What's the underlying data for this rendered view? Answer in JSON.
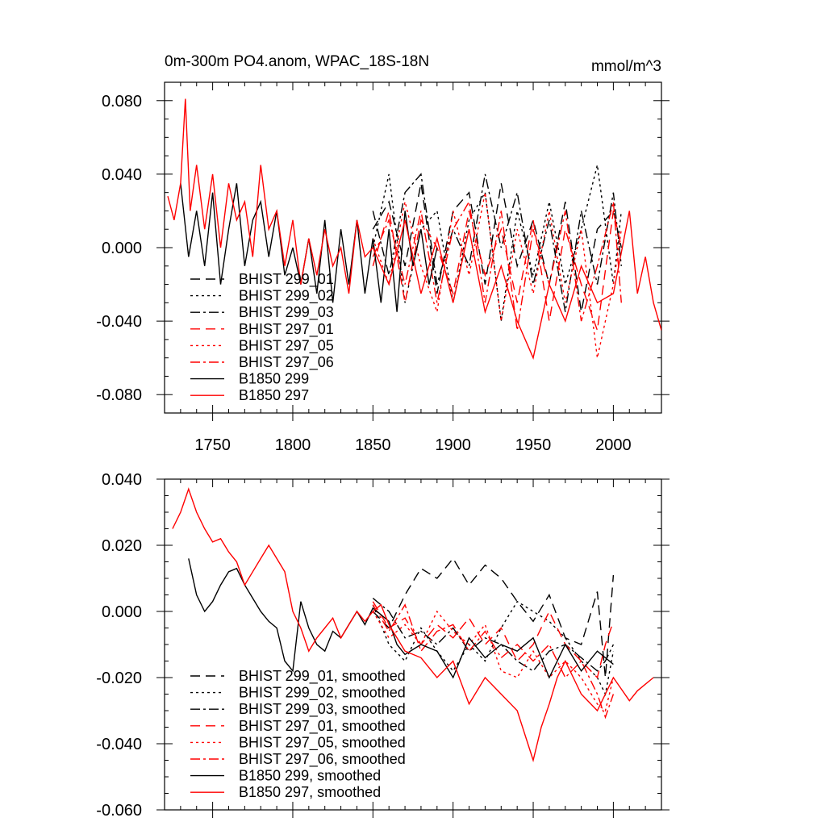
{
  "page": {
    "title_left": "0m-300m PO4.anom, WPAC_18S-18N",
    "title_right": "mmol/m^3"
  },
  "chart_data": [
    {
      "type": "line",
      "title": "0m-300m PO4.anom, WPAC_18S-18N",
      "units": "mmol/m^3",
      "xlim": [
        1720,
        2030
      ],
      "ylim": [
        -0.09,
        0.09
      ],
      "xticks": [
        1750,
        1800,
        1850,
        1900,
        1950,
        2000
      ],
      "xtick_labels": [
        "1750",
        "1800",
        "1850",
        "1900",
        "1950",
        "2000"
      ],
      "yticks": [
        0.08,
        0.04,
        0.0,
        -0.04,
        -0.08
      ],
      "ytick_labels": [
        "0.080",
        "0.040",
        "0.000",
        "-0.040",
        "-0.080"
      ],
      "legend_position": "bottom-left",
      "series": [
        {
          "name": "BHIST 299_01",
          "color": "#000000",
          "dash": "dash",
          "x": [
            1850,
            1860,
            1870,
            1880,
            1890,
            1900,
            1910,
            1920,
            1930,
            1940,
            1950,
            1960,
            1970,
            1980,
            1990,
            2000,
            2005
          ],
          "y": [
            0.01,
            0.025,
            -0.01,
            0.035,
            -0.025,
            0.02,
            0.03,
            -0.02,
            0.035,
            -0.01,
            0.015,
            -0.02,
            0.025,
            -0.035,
            0.01,
            0.02,
            0.0
          ]
        },
        {
          "name": "BHIST 299_02",
          "color": "#000000",
          "dash": "dot",
          "x": [
            1850,
            1860,
            1870,
            1880,
            1890,
            1900,
            1910,
            1920,
            1930,
            1940,
            1950,
            1960,
            1970,
            1980,
            1990,
            2000,
            2005
          ],
          "y": [
            0.0,
            0.04,
            -0.03,
            0.01,
            0.02,
            -0.03,
            0.015,
            0.03,
            -0.04,
            0.02,
            -0.015,
            0.025,
            -0.02,
            0.01,
            0.045,
            -0.02,
            0.02
          ]
        },
        {
          "name": "BHIST 299_03",
          "color": "#000000",
          "dash": "dashdot",
          "x": [
            1850,
            1860,
            1870,
            1880,
            1890,
            1900,
            1910,
            1920,
            1930,
            1940,
            1950,
            1960,
            1970,
            1980,
            1990,
            2000,
            2005
          ],
          "y": [
            0.02,
            -0.015,
            0.03,
            0.04,
            -0.02,
            0.01,
            -0.01,
            0.04,
            0.0,
            0.03,
            -0.02,
            0.015,
            -0.035,
            0.02,
            -0.02,
            0.03,
            -0.01
          ]
        },
        {
          "name": "BHIST 297_01",
          "color": "#ff0000",
          "dash": "dash",
          "x": [
            1850,
            1860,
            1870,
            1880,
            1890,
            1900,
            1910,
            1920,
            1930,
            1940,
            1950,
            1960,
            1970,
            1980,
            1990,
            2000,
            2005
          ],
          "y": [
            -0.01,
            0.02,
            -0.03,
            0.015,
            0.0,
            -0.025,
            0.02,
            -0.015,
            0.01,
            -0.03,
            0.015,
            -0.04,
            0.01,
            -0.02,
            -0.045,
            0.02,
            0.0
          ]
        },
        {
          "name": "BHIST 297_05",
          "color": "#ff0000",
          "dash": "dot",
          "x": [
            1850,
            1860,
            1870,
            1880,
            1890,
            1900,
            1910,
            1920,
            1930,
            1940,
            1950,
            1960,
            1970,
            1980,
            1990,
            2000,
            2005
          ],
          "y": [
            0.005,
            -0.02,
            0.025,
            -0.01,
            -0.035,
            0.02,
            -0.015,
            0.03,
            -0.04,
            0.01,
            -0.025,
            0.02,
            -0.03,
            0.01,
            -0.06,
            -0.02,
            0.01
          ]
        },
        {
          "name": "BHIST 297_06",
          "color": "#ff0000",
          "dash": "dashdot",
          "x": [
            1850,
            1860,
            1870,
            1880,
            1890,
            1900,
            1910,
            1920,
            1930,
            1940,
            1950,
            1960,
            1970,
            1980,
            1990,
            2000,
            2005
          ],
          "y": [
            -0.005,
            0.015,
            -0.02,
            0.02,
            -0.03,
            0.01,
            0.025,
            -0.03,
            0.02,
            -0.045,
            0.01,
            -0.02,
            0.02,
            -0.04,
            -0.01,
            0.025,
            -0.03
          ]
        },
        {
          "name": "B1850 299",
          "color": "#000000",
          "dash": "solid",
          "x": [
            1730,
            1735,
            1740,
            1745,
            1750,
            1755,
            1760,
            1765,
            1770,
            1775,
            1780,
            1785,
            1790,
            1795,
            1800,
            1805,
            1810,
            1815,
            1820,
            1825,
            1830,
            1835,
            1840,
            1845,
            1850,
            1855,
            1860,
            1865,
            1870,
            1875,
            1880,
            1885,
            1890
          ],
          "y": [
            0.035,
            -0.005,
            0.02,
            -0.01,
            0.03,
            -0.02,
            0.01,
            0.035,
            -0.01,
            0.015,
            0.025,
            -0.005,
            0.02,
            -0.015,
            0.0,
            -0.02,
            0.005,
            -0.025,
            0.015,
            -0.03,
            0.01,
            -0.02,
            0.015,
            -0.025,
            0.005,
            -0.03,
            0.01,
            -0.035,
            0.02,
            -0.01,
            0.01,
            -0.02,
            0.0
          ]
        },
        {
          "name": "B1850 297",
          "color": "#ff0000",
          "dash": "solid",
          "x": [
            1722,
            1726,
            1730,
            1733,
            1736,
            1740,
            1745,
            1750,
            1755,
            1760,
            1765,
            1770,
            1775,
            1780,
            1785,
            1790,
            1795,
            1800,
            1805,
            1810,
            1815,
            1820,
            1825,
            1830,
            1835,
            1840,
            1845,
            1850,
            1860,
            1870,
            1880,
            1890,
            1900,
            1910,
            1920,
            1930,
            1940,
            1950,
            1960,
            1970,
            1980,
            1990,
            2000,
            2010,
            2015,
            2020,
            2025,
            2030
          ],
          "y": [
            0.028,
            0.015,
            0.035,
            0.081,
            0.02,
            0.045,
            0.01,
            0.04,
            0.0,
            0.035,
            0.015,
            0.025,
            -0.005,
            0.045,
            0.01,
            0.02,
            -0.01,
            0.015,
            -0.02,
            0.005,
            -0.015,
            0.01,
            -0.01,
            0.0,
            -0.025,
            0.015,
            -0.005,
            0.0,
            -0.02,
            0.015,
            -0.025,
            0.005,
            -0.03,
            0.01,
            -0.035,
            -0.01,
            -0.04,
            -0.06,
            -0.02,
            -0.04,
            -0.01,
            -0.03,
            -0.025,
            0.02,
            -0.025,
            -0.005,
            -0.03,
            -0.045
          ]
        }
      ]
    },
    {
      "type": "line",
      "xlim": [
        1720,
        2030
      ],
      "ylim": [
        -0.06,
        0.04
      ],
      "xticks": [
        1750,
        1800,
        1850,
        1900,
        1950,
        2000
      ],
      "yticks": [
        0.04,
        0.02,
        0.0,
        -0.02,
        -0.04,
        -0.06
      ],
      "ytick_labels": [
        "0.040",
        "0.020",
        "0.000",
        "-0.020",
        "-0.040",
        "-0.060"
      ],
      "legend_position": "bottom-left",
      "series": [
        {
          "name": "BHIST 299_01, smoothed",
          "color": "#000000",
          "dash": "dash",
          "x": [
            1850,
            1860,
            1870,
            1880,
            1890,
            1900,
            1910,
            1920,
            1930,
            1940,
            1950,
            1960,
            1970,
            1980,
            1990,
            1995,
            2000
          ],
          "y": [
            0.0,
            -0.005,
            0.005,
            0.013,
            0.01,
            0.016,
            0.008,
            0.014,
            0.01,
            0.003,
            -0.003,
            0.005,
            -0.008,
            -0.01,
            0.006,
            -0.02,
            0.011
          ]
        },
        {
          "name": "BHIST 299_02, smoothed",
          "color": "#000000",
          "dash": "dot",
          "x": [
            1850,
            1860,
            1870,
            1880,
            1890,
            1900,
            1910,
            1920,
            1930,
            1940,
            1950,
            1960,
            1970,
            1980,
            1990,
            1995,
            2000
          ],
          "y": [
            0.002,
            -0.01,
            -0.015,
            -0.005,
            -0.012,
            -0.018,
            -0.01,
            -0.015,
            -0.005,
            0.003,
            0.0,
            -0.003,
            -0.008,
            -0.015,
            -0.02,
            -0.025,
            -0.012
          ]
        },
        {
          "name": "BHIST 299_03, smoothed",
          "color": "#000000",
          "dash": "dashdot",
          "x": [
            1850,
            1860,
            1870,
            1880,
            1890,
            1900,
            1910,
            1920,
            1930,
            1940,
            1950,
            1960,
            1970,
            1980,
            1990,
            1995,
            2000
          ],
          "y": [
            0.004,
            0.0,
            -0.008,
            -0.006,
            -0.01,
            -0.005,
            -0.012,
            -0.008,
            -0.01,
            -0.015,
            -0.018,
            -0.012,
            -0.01,
            -0.014,
            -0.018,
            -0.015,
            -0.01
          ]
        },
        {
          "name": "BHIST 297_01, smoothed",
          "color": "#ff0000",
          "dash": "dash",
          "x": [
            1850,
            1860,
            1870,
            1880,
            1890,
            1900,
            1910,
            1920,
            1930,
            1940,
            1950,
            1960,
            1970,
            1980,
            1990,
            1995,
            2000
          ],
          "y": [
            0.003,
            -0.005,
            -0.002,
            -0.01,
            -0.004,
            -0.008,
            -0.002,
            -0.01,
            -0.005,
            -0.015,
            -0.01,
            0.0,
            -0.01,
            -0.015,
            -0.02,
            -0.01,
            -0.003
          ]
        },
        {
          "name": "BHIST 297_05, smoothed",
          "color": "#ff0000",
          "dash": "dot",
          "x": [
            1850,
            1860,
            1870,
            1880,
            1890,
            1900,
            1910,
            1920,
            1930,
            1940,
            1950,
            1960,
            1970,
            1980,
            1990,
            1995,
            2000
          ],
          "y": [
            0.0,
            -0.008,
            -0.004,
            -0.01,
            0.0,
            -0.006,
            -0.01,
            -0.004,
            -0.018,
            -0.02,
            -0.012,
            -0.02,
            -0.015,
            -0.02,
            -0.028,
            -0.03,
            -0.02
          ]
        },
        {
          "name": "BHIST 297_06, smoothed",
          "color": "#ff0000",
          "dash": "dashdot",
          "x": [
            1850,
            1860,
            1870,
            1880,
            1890,
            1900,
            1910,
            1920,
            1930,
            1940,
            1950,
            1960,
            1970,
            1980,
            1990,
            1995,
            2000
          ],
          "y": [
            0.002,
            -0.006,
            0.002,
            -0.012,
            -0.006,
            -0.004,
            -0.012,
            -0.006,
            -0.014,
            -0.01,
            -0.015,
            -0.01,
            -0.02,
            -0.015,
            -0.025,
            -0.032,
            -0.025
          ]
        },
        {
          "name": "B1850 299, smoothed",
          "color": "#000000",
          "dash": "solid",
          "x": [
            1735,
            1740,
            1745,
            1750,
            1755,
            1760,
            1765,
            1770,
            1775,
            1780,
            1785,
            1790,
            1795,
            1800,
            1805,
            1810,
            1815,
            1820,
            1825,
            1830,
            1835,
            1840,
            1845,
            1850,
            1855,
            1860,
            1865,
            1870,
            1880,
            1890,
            1900,
            1910,
            1920,
            1930,
            1940,
            1950,
            1960,
            1970,
            1980,
            1990,
            2000
          ],
          "y": [
            0.016,
            0.005,
            0.0,
            0.003,
            0.008,
            0.012,
            0.013,
            0.008,
            0.004,
            0.0,
            -0.003,
            -0.005,
            -0.015,
            -0.018,
            0.003,
            -0.005,
            -0.01,
            -0.012,
            -0.006,
            -0.008,
            -0.004,
            0.0,
            -0.004,
            0.001,
            -0.001,
            -0.003,
            -0.01,
            -0.013,
            -0.01,
            -0.012,
            -0.02,
            -0.008,
            -0.014,
            -0.01,
            -0.012,
            -0.008,
            -0.02,
            -0.01,
            -0.018,
            -0.012,
            -0.016
          ]
        },
        {
          "name": "B1850 297, smoothed",
          "color": "#ff0000",
          "dash": "solid",
          "x": [
            1725,
            1730,
            1735,
            1740,
            1745,
            1750,
            1755,
            1760,
            1765,
            1770,
            1775,
            1780,
            1785,
            1790,
            1795,
            1800,
            1805,
            1810,
            1815,
            1820,
            1825,
            1830,
            1835,
            1840,
            1845,
            1850,
            1855,
            1860,
            1870,
            1880,
            1890,
            1900,
            1910,
            1920,
            1930,
            1940,
            1950,
            1955,
            1960,
            1965,
            1970,
            1980,
            1990,
            2000,
            2010,
            2015,
            2020,
            2025
          ],
          "y": [
            0.025,
            0.03,
            0.037,
            0.03,
            0.025,
            0.021,
            0.022,
            0.018,
            0.015,
            0.008,
            0.012,
            0.016,
            0.02,
            0.016,
            0.012,
            0.0,
            -0.005,
            -0.012,
            -0.008,
            -0.005,
            -0.002,
            -0.008,
            -0.004,
            0.0,
            -0.003,
            0.0,
            0.002,
            -0.004,
            -0.012,
            -0.014,
            -0.02,
            -0.015,
            -0.028,
            -0.02,
            -0.025,
            -0.03,
            -0.045,
            -0.035,
            -0.028,
            -0.02,
            -0.015,
            -0.025,
            -0.03,
            -0.02,
            -0.027,
            -0.024,
            -0.022,
            -0.02
          ]
        }
      ]
    }
  ]
}
